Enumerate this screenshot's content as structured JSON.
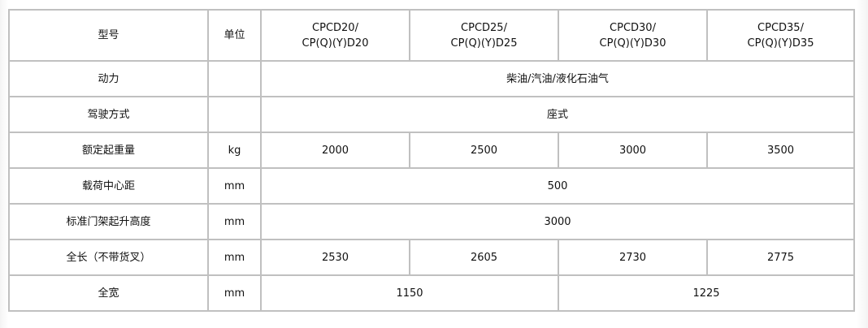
{
  "header": {
    "model_label": "型号",
    "unit_label": "单位",
    "models": [
      {
        "line1": "CPCD20/",
        "line2": "CP(Q)(Y)D20"
      },
      {
        "line1": "CPCD25/",
        "line2": "CP(Q)(Y)D25"
      },
      {
        "line1": "CPCD30/",
        "line2": "CP(Q)(Y)D30"
      },
      {
        "line1": "CPCD35/",
        "line2": "CP(Q)(Y)D35"
      }
    ]
  },
  "rows": {
    "power": {
      "label": "动力",
      "unit": "",
      "value": "柴油/汽油/液化石油气"
    },
    "drive": {
      "label": "驾驶方式",
      "unit": "",
      "value": "座式"
    },
    "capacity": {
      "label": "额定起重量",
      "unit": "kg",
      "values": [
        "2000",
        "2500",
        "3000",
        "3500"
      ]
    },
    "load_center": {
      "label": "载荷中心距",
      "unit": "mm",
      "value": "500"
    },
    "lift_height": {
      "label": "标准门架起升高度",
      "unit": "mm",
      "value": "3000"
    },
    "length": {
      "label": "全长（不带货叉）",
      "unit": "mm",
      "values": [
        "2530",
        "2605",
        "2730",
        "2775"
      ]
    },
    "width": {
      "label": "全宽",
      "unit": "mm",
      "values": [
        "1150",
        "1225"
      ]
    }
  }
}
